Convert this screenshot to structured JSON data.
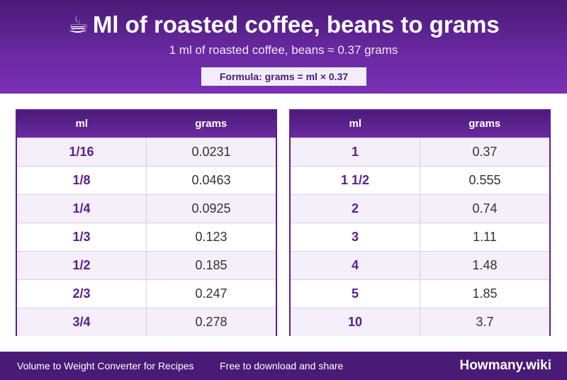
{
  "header": {
    "icon": "☕",
    "title": "Ml of roasted coffee, beans to grams",
    "subtitle": "1 ml of roasted coffee, beans ≈ 0.37 grams",
    "formula": "Formula: grams = ml × 0.37"
  },
  "tables": [
    {
      "col1": "ml",
      "col2": "grams",
      "rows": [
        [
          "1/16",
          "0.0231"
        ],
        [
          "1/8",
          "0.0463"
        ],
        [
          "1/4",
          "0.0925"
        ],
        [
          "1/3",
          "0.123"
        ],
        [
          "1/2",
          "0.185"
        ],
        [
          "2/3",
          "0.247"
        ],
        [
          "3/4",
          "0.278"
        ]
      ]
    },
    {
      "col1": "ml",
      "col2": "grams",
      "rows": [
        [
          "1",
          "0.37"
        ],
        [
          "1 1/2",
          "0.555"
        ],
        [
          "2",
          "0.74"
        ],
        [
          "3",
          "1.11"
        ],
        [
          "4",
          "1.48"
        ],
        [
          "5",
          "1.85"
        ],
        [
          "10",
          "3.7"
        ]
      ]
    }
  ],
  "footer": {
    "left_text": "Volume to Weight Converter for Recipes",
    "middle_text": "Free to download and share",
    "brand": "Howmany.wiki"
  },
  "colors": {
    "primary": "#4a1a77",
    "accent": "#6b2aa3",
    "row_alt": "#f4eff9"
  }
}
